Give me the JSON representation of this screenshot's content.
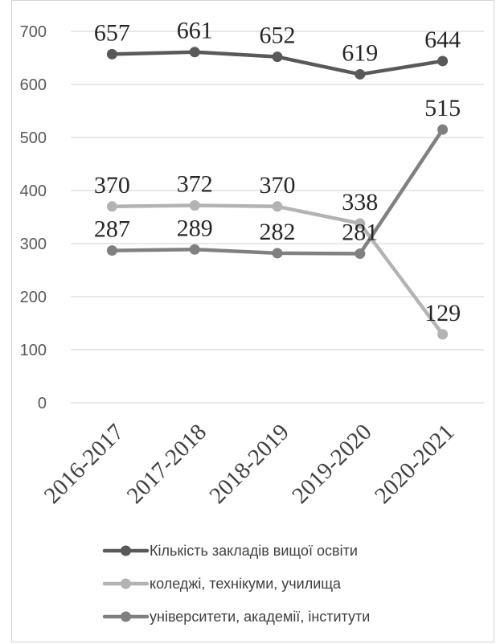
{
  "chart_data": {
    "type": "line",
    "categories": [
      "2016-2017",
      "2017-2018",
      "2018-2019",
      "2019-2020",
      "2020-2021"
    ],
    "ylim": [
      0,
      700
    ],
    "yticks": [
      0,
      100,
      200,
      300,
      400,
      500,
      600,
      700
    ],
    "grid": true,
    "legend_position": "bottom",
    "series": [
      {
        "name": "Кількість закладів вищої освіти",
        "values": [
          657,
          661,
          652,
          619,
          644
        ],
        "color": "#595959"
      },
      {
        "name": "коледжі, технікуми, училища",
        "values": [
          370,
          372,
          370,
          338,
          129
        ],
        "color": "#b3b3b3"
      },
      {
        "name": "університети, академії, інститути",
        "values": [
          287,
          289,
          282,
          281,
          515
        ],
        "color": "#808080"
      }
    ]
  }
}
